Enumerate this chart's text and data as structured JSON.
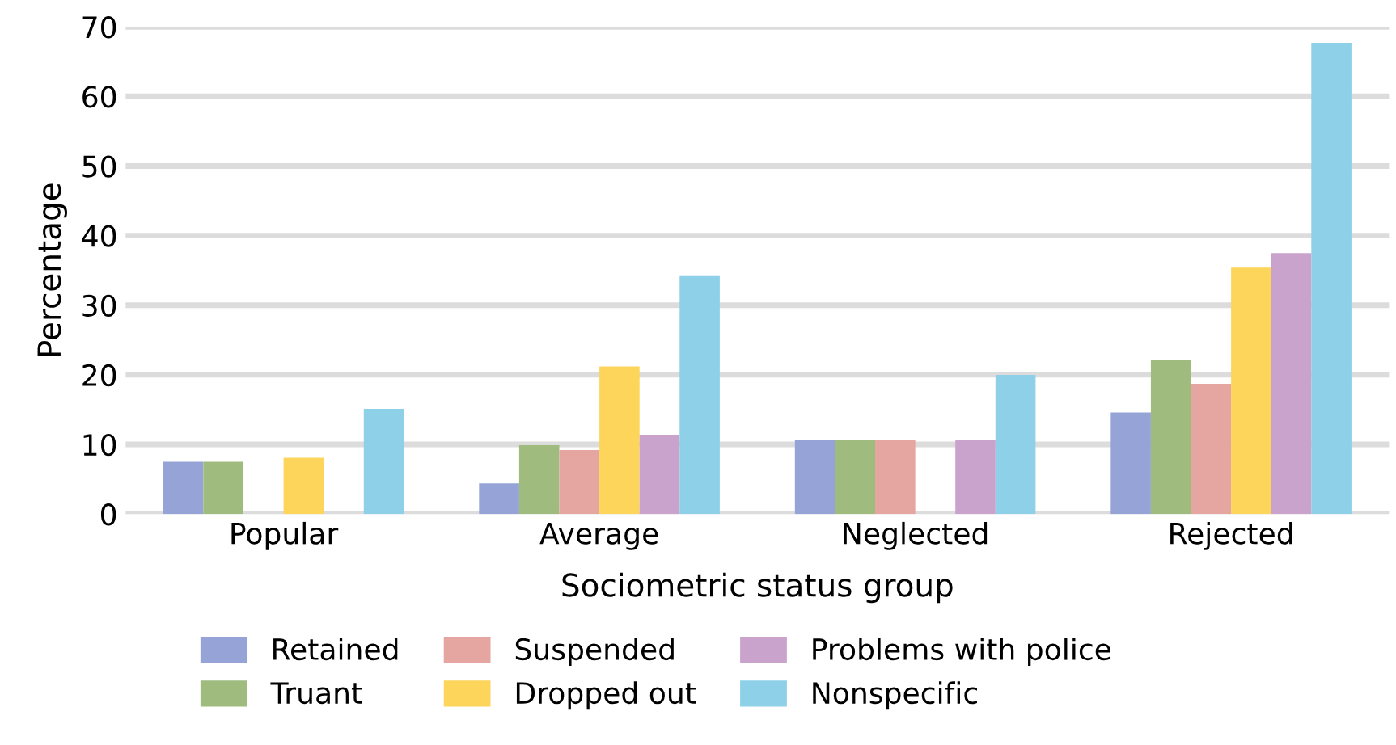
{
  "chart_data": {
    "type": "bar",
    "xlabel": "Sociometric status group",
    "ylabel": "Percentage",
    "categories": [
      "Popular",
      "Average",
      "Neglected",
      "Rejected"
    ],
    "series": [
      {
        "name": "Retained",
        "color": "#95a3d6",
        "values": [
          7.5,
          4.4,
          10.6,
          14.6
        ]
      },
      {
        "name": "Truant",
        "color": "#9fbb7e",
        "values": [
          7.5,
          9.9,
          10.6,
          22.2
        ]
      },
      {
        "name": "Suspended",
        "color": "#e5a5a0",
        "values": [
          null,
          9.2,
          10.6,
          18.7
        ]
      },
      {
        "name": "Dropped out",
        "color": "#fcd55a",
        "values": [
          8.1,
          21.2,
          null,
          35.4
        ]
      },
      {
        "name": "Problems with police",
        "color": "#c9a3cb",
        "values": [
          null,
          11.4,
          10.6,
          37.5
        ]
      },
      {
        "name": "Nonspecific",
        "color": "#8dd0e8",
        "values": [
          15.1,
          34.3,
          20.0,
          67.7
        ]
      }
    ],
    "ylim": [
      0,
      70
    ],
    "yticks": [
      0,
      10,
      20,
      30,
      40,
      50,
      60,
      70
    ],
    "grid": "y",
    "legend": "bottom"
  }
}
